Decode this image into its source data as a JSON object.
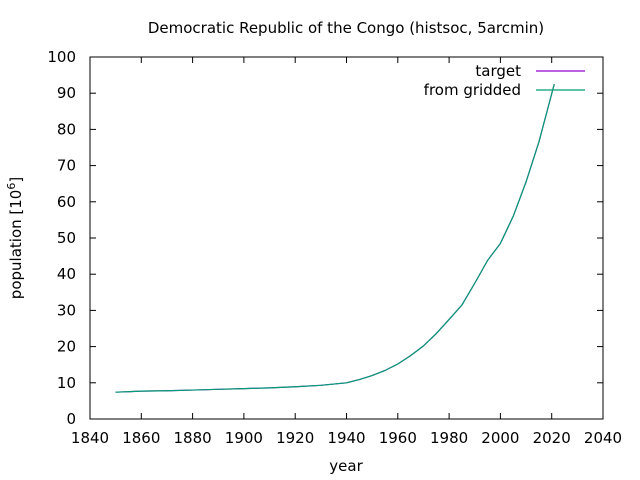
{
  "chart_data": {
    "type": "line",
    "title": "Democratic Republic of the Congo (histsoc, 5arcmin)",
    "xlabel": "year",
    "ylabel": "population [10",
    "ylabel_exp": "6",
    "ylabel_close": "]",
    "xlim": [
      1840,
      2040
    ],
    "ylim": [
      0,
      100
    ],
    "xticks": [
      1840,
      1860,
      1880,
      1900,
      1920,
      1940,
      1960,
      1980,
      2000,
      2020,
      2040
    ],
    "yticks": [
      0,
      10,
      20,
      30,
      40,
      50,
      60,
      70,
      80,
      90,
      100
    ],
    "legend_position": "top-right",
    "series": [
      {
        "name": "target",
        "color": "#9400d3",
        "x": [
          1850,
          1860,
          1870,
          1880,
          1890,
          1900,
          1910,
          1920,
          1930,
          1940,
          1945,
          1950,
          1955,
          1960,
          1965,
          1970,
          1975,
          1980,
          1985,
          1990,
          1995,
          2000,
          2005,
          2010,
          2015,
          2021
        ],
        "y": [
          7.4,
          7.7,
          7.8,
          8.0,
          8.2,
          8.4,
          8.6,
          8.9,
          9.3,
          10.0,
          10.9,
          12.0,
          13.4,
          15.2,
          17.5,
          20.2,
          23.6,
          27.5,
          31.5,
          37.5,
          43.8,
          48.5,
          56.0,
          65.5,
          76.5,
          92.5
        ]
      },
      {
        "name": "from gridded",
        "color": "#009e73",
        "x": [
          1850,
          1860,
          1870,
          1880,
          1890,
          1900,
          1910,
          1920,
          1930,
          1940,
          1945,
          1950,
          1955,
          1960,
          1965,
          1970,
          1975,
          1980,
          1985,
          1990,
          1995,
          2000,
          2005,
          2010,
          2015,
          2021
        ],
        "y": [
          7.4,
          7.7,
          7.8,
          8.0,
          8.2,
          8.4,
          8.6,
          8.9,
          9.3,
          10.0,
          10.9,
          12.0,
          13.4,
          15.2,
          17.5,
          20.2,
          23.6,
          27.5,
          31.5,
          37.5,
          43.8,
          48.5,
          56.0,
          65.5,
          76.5,
          92.5
        ]
      }
    ]
  }
}
